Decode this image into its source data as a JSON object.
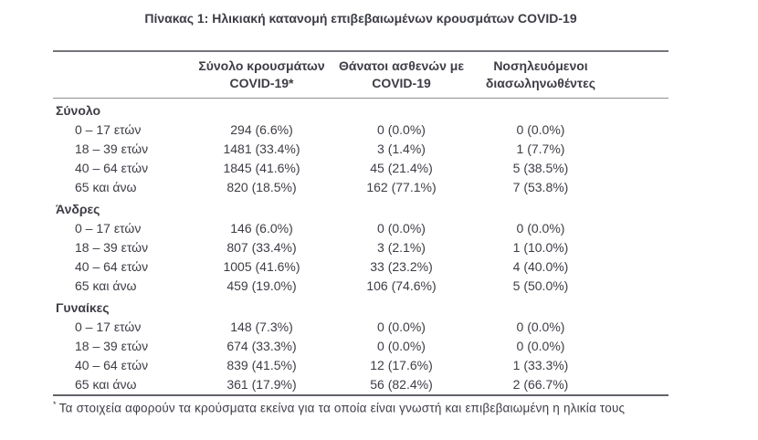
{
  "page": {
    "title": "Πίνακας 1: Ηλικιακή κατανομή επιβεβαιωμένων κρουσμάτων COVID-19",
    "footnote_marker": "*",
    "footnote": "Τα στοιχεία αφορούν τα κρούσματα εκείνα για τα οποία είναι γνωστή και επιβεβαιωμένη η ηλικία τους"
  },
  "table": {
    "columns": [
      {
        "line1": "",
        "line2": ""
      },
      {
        "line1": "Σύνολο κρουσμάτων",
        "line2": "COVID-19*"
      },
      {
        "line1": "Θάνατοι ασθενών με",
        "line2": "COVID-19"
      },
      {
        "line1": "Νοσηλευόμενοι",
        "line2": "διασωληνωθέντες"
      }
    ],
    "sections": [
      {
        "label": "Σύνολο",
        "rows": [
          {
            "age": "0 – 17 ετών",
            "cases": "294 (6.6%)",
            "deaths": "0 (0.0%)",
            "intubated": "0 (0.0%)"
          },
          {
            "age": "18 – 39 ετών",
            "cases": "1481 (33.4%)",
            "deaths": "3 (1.4%)",
            "intubated": "1 (7.7%)"
          },
          {
            "age": "40 – 64 ετών",
            "cases": "1845 (41.6%)",
            "deaths": "45 (21.4%)",
            "intubated": "5 (38.5%)"
          },
          {
            "age": "65 και άνω",
            "cases": "820 (18.5%)",
            "deaths": "162 (77.1%)",
            "intubated": "7 (53.8%)"
          }
        ]
      },
      {
        "label": "Άνδρες",
        "rows": [
          {
            "age": "0 – 17 ετών",
            "cases": "146 (6.0%)",
            "deaths": "0 (0.0%)",
            "intubated": "0 (0.0%)"
          },
          {
            "age": "18 – 39 ετών",
            "cases": "807 (33.4%)",
            "deaths": "3 (2.1%)",
            "intubated": "1 (10.0%)"
          },
          {
            "age": "40 – 64 ετών",
            "cases": "1005 (41.6%)",
            "deaths": "33 (23.2%)",
            "intubated": "4 (40.0%)"
          },
          {
            "age": "65 και άνω",
            "cases": "459 (19.0%)",
            "deaths": "106 (74.6%)",
            "intubated": "5 (50.0%)"
          }
        ]
      },
      {
        "label": "Γυναίκες",
        "rows": [
          {
            "age": "0 – 17 ετών",
            "cases": "148 (7.3%)",
            "deaths": "0 (0.0%)",
            "intubated": "0 (0.0%)"
          },
          {
            "age": "18 – 39 ετών",
            "cases": "674 (33.3%)",
            "deaths": "0 (0.0%)",
            "intubated": "0 (0.0%)"
          },
          {
            "age": "40 – 64 ετών",
            "cases": "839 (41.5%)",
            "deaths": "12 (17.6%)",
            "intubated": "1 (33.3%)"
          },
          {
            "age": "65 και άνω",
            "cases": "361 (17.9%)",
            "deaths": "56 (82.4%)",
            "intubated": "2 (66.7%)"
          }
        ]
      }
    ]
  },
  "colors": {
    "text": "#3d3d46",
    "border_heavy_top": "#75757b",
    "border_heavy_bottom": "#626268",
    "border_light": "#8f8f94",
    "background": "#ffffff"
  }
}
